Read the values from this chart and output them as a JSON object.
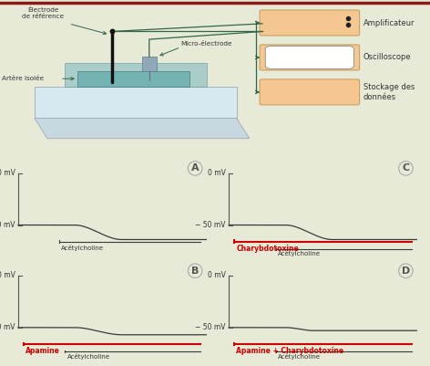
{
  "bg_color": "#e8ead8",
  "border_color": "#8b1a1a",
  "panel_labels": [
    "A",
    "B",
    "C",
    "D"
  ],
  "inhibitor_labels": {
    "A": null,
    "B": "Apamine",
    "C": "Charybdotoxine",
    "D": "Apamine + Charybdotoxine"
  },
  "acetylcholine_label": "Acétylcholine",
  "trace_color": "#3a3a3a",
  "bar_color_dark": "#3a3a3a",
  "bar_color_red": "#cc0000",
  "amplificateur_label": "Amplificateur",
  "oscilloscope_label": "Oscilloscope",
  "stockage_label": "Stockage des\ndonnées",
  "electrode_ref_label": "Électrode\nde référence",
  "micro_electrode_label": "Micro-électrode",
  "artere_label": "Artère isolée",
  "box_color": "#f5c892",
  "box_edge_color": "#c8a060",
  "wire_color": "#336644",
  "platform_color": "#c8d8e0",
  "bath_color": "#90c0c0",
  "tissue_color": "#70b0a8",
  "micro_color": "#7090a0"
}
